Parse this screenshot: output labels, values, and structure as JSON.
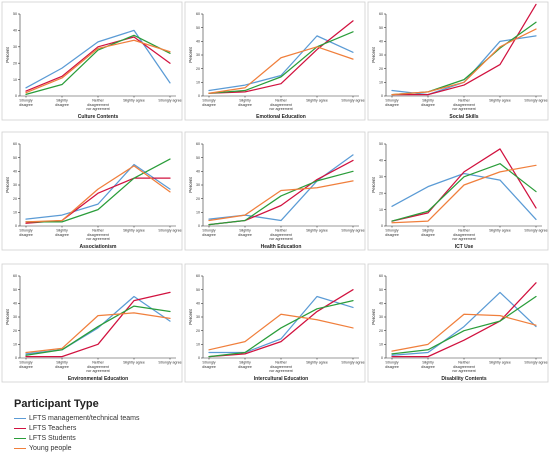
{
  "legend": {
    "title": "Participant Type",
    "items": [
      {
        "label": "LFTS management/technical teams",
        "color": "#5b9bd5"
      },
      {
        "label": "LFTS Teachers",
        "color": "#d1123f"
      },
      {
        "label": "LFTS Students",
        "color": "#2a9d3a"
      },
      {
        "label": "Young people",
        "color": "#f07f3c"
      }
    ]
  },
  "chart_data": [
    {
      "type": "line",
      "title": "Culture Contents",
      "ylabel": "Percent",
      "ylim": [
        0,
        50
      ],
      "yticks": [
        0,
        10,
        20,
        30,
        40,
        50
      ],
      "categories": [
        [
          "Strongly",
          "disagree"
        ],
        [
          "Slightly",
          "disagree"
        ],
        [
          "Neither",
          "disagreement",
          "nor agreement"
        ],
        [
          "Slightly agree"
        ],
        [
          "Strongly agree"
        ]
      ],
      "series": [
        {
          "name": "LFTS management/technical teams",
          "color": "#5b9bd5",
          "values": [
            5,
            17,
            33,
            40,
            8
          ]
        },
        {
          "name": "LFTS Teachers",
          "color": "#d1123f",
          "values": [
            3,
            12,
            30,
            36,
            20
          ]
        },
        {
          "name": "LFTS Students",
          "color": "#2a9d3a",
          "values": [
            1,
            7,
            28,
            37,
            26
          ]
        },
        {
          "name": "Young people",
          "color": "#f07f3c",
          "values": [
            2,
            11,
            29,
            34,
            27
          ]
        }
      ]
    },
    {
      "type": "line",
      "title": "Emotional Education",
      "ylabel": "Percent",
      "ylim": [
        0,
        60
      ],
      "yticks": [
        0,
        10,
        20,
        30,
        40,
        50,
        60
      ],
      "categories": [
        [
          "Strongly",
          "disagree"
        ],
        [
          "Slightly",
          "disagree"
        ],
        [
          "Neither",
          "disagreement",
          "nor agreement"
        ],
        [
          "Slightly agree"
        ],
        [
          "Strongly agree"
        ]
      ],
      "series": [
        {
          "name": "LFTS management/technical teams",
          "color": "#5b9bd5",
          "values": [
            4,
            8,
            15,
            44,
            32
          ]
        },
        {
          "name": "LFTS Teachers",
          "color": "#d1123f",
          "values": [
            2,
            3,
            9,
            34,
            55
          ]
        },
        {
          "name": "LFTS Students",
          "color": "#2a9d3a",
          "values": [
            2,
            4,
            14,
            36,
            47
          ]
        },
        {
          "name": "Young people",
          "color": "#f07f3c",
          "values": [
            2,
            6,
            28,
            36,
            27
          ]
        }
      ]
    },
    {
      "type": "line",
      "title": "Social Skills",
      "ylabel": "Percent",
      "ylim": [
        0,
        60
      ],
      "yticks": [
        0,
        10,
        20,
        30,
        40,
        50,
        60
      ],
      "categories": [
        [
          "Strongly",
          "disagree"
        ],
        [
          "Slightly",
          "disagree"
        ],
        [
          "Neither",
          "disagreement",
          "nor agreement"
        ],
        [
          "Slightly agree"
        ],
        [
          "Strongly agree"
        ]
      ],
      "series": [
        {
          "name": "LFTS management/technical teams",
          "color": "#5b9bd5",
          "values": [
            4,
            1,
            10,
            40,
            44
          ]
        },
        {
          "name": "LFTS Teachers",
          "color": "#d1123f",
          "values": [
            1,
            1,
            8,
            23,
            67
          ]
        },
        {
          "name": "LFTS Students",
          "color": "#2a9d3a",
          "values": [
            1,
            3,
            12,
            35,
            54
          ]
        },
        {
          "name": "Young people",
          "color": "#f07f3c",
          "values": [
            1,
            3,
            10,
            36,
            49
          ]
        }
      ]
    },
    {
      "type": "line",
      "title": "Associationism",
      "ylabel": "Percent",
      "ylim": [
        0,
        60
      ],
      "yticks": [
        0,
        10,
        20,
        30,
        40,
        50,
        60
      ],
      "categories": [
        [
          "Strongly",
          "disagree"
        ],
        [
          "Slightly",
          "disagree"
        ],
        [
          "Neither",
          "disagreement",
          "nor agreement"
        ],
        [
          "Slightly agree"
        ],
        [
          "Strongly agree"
        ]
      ],
      "series": [
        {
          "name": "LFTS management/technical teams",
          "color": "#5b9bd5",
          "values": [
            5,
            8,
            16,
            45,
            27
          ]
        },
        {
          "name": "LFTS Teachers",
          "color": "#d1123f",
          "values": [
            2,
            4,
            24,
            35,
            35
          ]
        },
        {
          "name": "LFTS Students",
          "color": "#2a9d3a",
          "values": [
            3,
            3,
            12,
            35,
            49
          ]
        },
        {
          "name": "Young people",
          "color": "#f07f3c",
          "values": [
            3,
            4,
            27,
            44,
            25
          ]
        }
      ]
    },
    {
      "type": "line",
      "title": "Health Education",
      "ylabel": "Percent",
      "ylim": [
        0,
        60
      ],
      "yticks": [
        0,
        10,
        20,
        30,
        40,
        50,
        60
      ],
      "categories": [
        [
          "Strongly",
          "disagree"
        ],
        [
          "Slightly",
          "disagree"
        ],
        [
          "Neither",
          "disagreement",
          "nor agreement"
        ],
        [
          "Slightly agree"
        ],
        [
          "Strongly agree"
        ]
      ],
      "series": [
        {
          "name": "LFTS management/technical teams",
          "color": "#5b9bd5",
          "values": [
            5,
            8,
            4,
            33,
            52
          ]
        },
        {
          "name": "LFTS Teachers",
          "color": "#d1123f",
          "values": [
            1,
            4,
            15,
            34,
            48
          ]
        },
        {
          "name": "LFTS Students",
          "color": "#2a9d3a",
          "values": [
            1,
            4,
            22,
            33,
            40
          ]
        },
        {
          "name": "Young people",
          "color": "#f07f3c",
          "values": [
            4,
            8,
            26,
            28,
            33
          ]
        }
      ]
    },
    {
      "type": "line",
      "title": "ICT Use",
      "ylabel": "Percent",
      "ylim": [
        0,
        50
      ],
      "yticks": [
        0,
        10,
        20,
        30,
        40,
        50
      ],
      "categories": [
        [
          "Strongly",
          "disagree"
        ],
        [
          "Slightly",
          "disagree"
        ],
        [
          "Neither",
          "disagreement",
          "nor agreement"
        ],
        [
          "Slightly agree"
        ],
        [
          "Strongly agree"
        ]
      ],
      "series": [
        {
          "name": "LFTS management/technical teams",
          "color": "#5b9bd5",
          "values": [
            12,
            24,
            32,
            28,
            4
          ]
        },
        {
          "name": "LFTS Teachers",
          "color": "#d1123f",
          "values": [
            3,
            8,
            33,
            47,
            11
          ]
        },
        {
          "name": "LFTS Students",
          "color": "#2a9d3a",
          "values": [
            3,
            9,
            30,
            38,
            21
          ]
        },
        {
          "name": "Young people",
          "color": "#f07f3c",
          "values": [
            2,
            3,
            25,
            33,
            37
          ]
        }
      ]
    },
    {
      "type": "line",
      "title": "Environmental Education",
      "ylabel": "Percent",
      "ylim": [
        0,
        60
      ],
      "yticks": [
        0,
        10,
        20,
        30,
        40,
        50,
        60
      ],
      "categories": [
        [
          "Strongly",
          "disagree"
        ],
        [
          "Slightly",
          "disagree"
        ],
        [
          "Neither",
          "disagreement",
          "nor agreement"
        ],
        [
          "Slightly agree"
        ],
        [
          "Strongly agree"
        ]
      ],
      "series": [
        {
          "name": "LFTS management/technical teams",
          "color": "#5b9bd5",
          "values": [
            3,
            6,
            22,
            45,
            27
          ]
        },
        {
          "name": "LFTS Teachers",
          "color": "#d1123f",
          "values": [
            1,
            1,
            10,
            42,
            48
          ]
        },
        {
          "name": "LFTS Students",
          "color": "#2a9d3a",
          "values": [
            2,
            6,
            23,
            38,
            34
          ]
        },
        {
          "name": "Young people",
          "color": "#f07f3c",
          "values": [
            4,
            7,
            31,
            33,
            29
          ]
        }
      ]
    },
    {
      "type": "line",
      "title": "Intercultural Education",
      "ylabel": "Percent",
      "ylim": [
        0,
        60
      ],
      "yticks": [
        0,
        10,
        20,
        30,
        40,
        50,
        60
      ],
      "categories": [
        [
          "Strongly",
          "disagree"
        ],
        [
          "Slightly",
          "disagree"
        ],
        [
          "Neither",
          "disagreement",
          "nor agreement"
        ],
        [
          "Slightly agree"
        ],
        [
          "Strongly agree"
        ]
      ],
      "series": [
        {
          "name": "LFTS management/technical teams",
          "color": "#5b9bd5",
          "values": [
            4,
            4,
            14,
            45,
            37
          ]
        },
        {
          "name": "LFTS Teachers",
          "color": "#d1123f",
          "values": [
            1,
            3,
            12,
            34,
            50
          ]
        },
        {
          "name": "LFTS Students",
          "color": "#2a9d3a",
          "values": [
            1,
            4,
            22,
            36,
            42
          ]
        },
        {
          "name": "Young people",
          "color": "#f07f3c",
          "values": [
            6,
            12,
            32,
            28,
            22
          ]
        }
      ]
    },
    {
      "type": "line",
      "title": "Disability Contents",
      "ylabel": "Percent",
      "ylim": [
        0,
        60
      ],
      "yticks": [
        0,
        10,
        20,
        30,
        40,
        50,
        60
      ],
      "categories": [
        [
          "Strongly",
          "disagree"
        ],
        [
          "Slightly",
          "disagree"
        ],
        [
          "Neither",
          "disagreement",
          "nor agreement"
        ],
        [
          "Slightly agree"
        ],
        [
          "Strongly agree"
        ]
      ],
      "series": [
        {
          "name": "LFTS management/technical teams",
          "color": "#5b9bd5",
          "values": [
            2,
            4,
            23,
            48,
            23
          ]
        },
        {
          "name": "LFTS Teachers",
          "color": "#d1123f",
          "values": [
            1,
            1,
            13,
            27,
            55
          ]
        },
        {
          "name": "LFTS Students",
          "color": "#2a9d3a",
          "values": [
            3,
            6,
            20,
            27,
            45
          ]
        },
        {
          "name": "Young people",
          "color": "#f07f3c",
          "values": [
            5,
            10,
            32,
            31,
            24
          ]
        }
      ]
    }
  ]
}
